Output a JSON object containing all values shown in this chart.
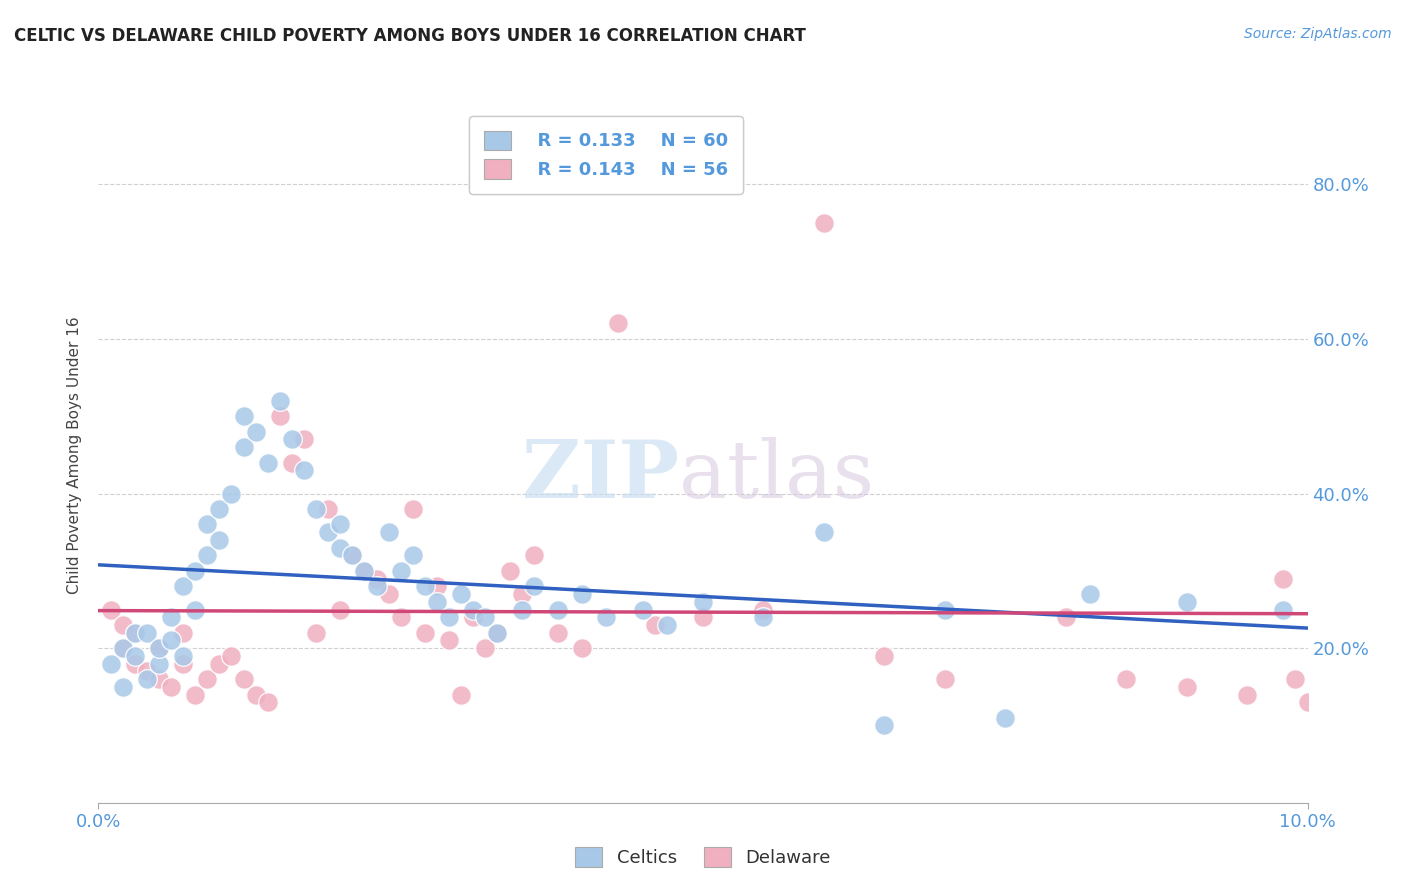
{
  "title": "CELTIC VS DELAWARE CHILD POVERTY AMONG BOYS UNDER 16 CORRELATION CHART",
  "source": "Source: ZipAtlas.com",
  "ylabel": "Child Poverty Among Boys Under 16",
  "xlim": [
    0.0,
    0.1
  ],
  "ylim": [
    0.0,
    0.9
  ],
  "yticks": [
    0.0,
    0.2,
    0.4,
    0.6,
    0.8
  ],
  "ytick_labels_right": [
    "",
    "20.0%",
    "40.0%",
    "60.0%",
    "80.0%"
  ],
  "celtics_color": "#a8c8e8",
  "delaware_color": "#f0b0c0",
  "celtics_line_color": "#3060c0",
  "delaware_line_color": "#d04878",
  "legend_R_celtics": "R = 0.133",
  "legend_N_celtics": "N = 60",
  "legend_R_delaware": "R = 0.143",
  "legend_N_delaware": "N = 56",
  "background_color": "#ffffff",
  "grid_color": "#d0d0d0",
  "watermark_zip": "ZIP",
  "watermark_atlas": "atlas",
  "celtics_x": [
    0.001,
    0.002,
    0.002,
    0.003,
    0.003,
    0.004,
    0.004,
    0.005,
    0.005,
    0.006,
    0.006,
    0.007,
    0.007,
    0.008,
    0.008,
    0.009,
    0.009,
    0.01,
    0.01,
    0.011,
    0.012,
    0.012,
    0.013,
    0.014,
    0.015,
    0.016,
    0.017,
    0.018,
    0.019,
    0.02,
    0.02,
    0.021,
    0.022,
    0.023,
    0.024,
    0.025,
    0.026,
    0.027,
    0.028,
    0.029,
    0.03,
    0.031,
    0.032,
    0.033,
    0.035,
    0.036,
    0.038,
    0.04,
    0.042,
    0.045,
    0.047,
    0.05,
    0.055,
    0.06,
    0.065,
    0.07,
    0.075,
    0.082,
    0.09,
    0.098
  ],
  "celtics_y": [
    0.18,
    0.15,
    0.2,
    0.22,
    0.19,
    0.16,
    0.22,
    0.18,
    0.2,
    0.21,
    0.24,
    0.19,
    0.28,
    0.25,
    0.3,
    0.32,
    0.36,
    0.34,
    0.38,
    0.4,
    0.46,
    0.5,
    0.48,
    0.44,
    0.52,
    0.47,
    0.43,
    0.38,
    0.35,
    0.33,
    0.36,
    0.32,
    0.3,
    0.28,
    0.35,
    0.3,
    0.32,
    0.28,
    0.26,
    0.24,
    0.27,
    0.25,
    0.24,
    0.22,
    0.25,
    0.28,
    0.25,
    0.27,
    0.24,
    0.25,
    0.23,
    0.26,
    0.24,
    0.35,
    0.1,
    0.25,
    0.11,
    0.27,
    0.26,
    0.25
  ],
  "delaware_x": [
    0.001,
    0.002,
    0.002,
    0.003,
    0.003,
    0.004,
    0.005,
    0.005,
    0.006,
    0.007,
    0.007,
    0.008,
    0.009,
    0.01,
    0.011,
    0.012,
    0.013,
    0.014,
    0.015,
    0.016,
    0.017,
    0.018,
    0.019,
    0.02,
    0.021,
    0.022,
    0.023,
    0.024,
    0.025,
    0.026,
    0.027,
    0.028,
    0.029,
    0.03,
    0.031,
    0.032,
    0.033,
    0.034,
    0.035,
    0.036,
    0.038,
    0.04,
    0.043,
    0.046,
    0.05,
    0.055,
    0.06,
    0.065,
    0.07,
    0.08,
    0.085,
    0.09,
    0.095,
    0.098,
    0.099,
    0.1
  ],
  "delaware_y": [
    0.25,
    0.23,
    0.2,
    0.18,
    0.22,
    0.17,
    0.16,
    0.2,
    0.15,
    0.18,
    0.22,
    0.14,
    0.16,
    0.18,
    0.19,
    0.16,
    0.14,
    0.13,
    0.5,
    0.44,
    0.47,
    0.22,
    0.38,
    0.25,
    0.32,
    0.3,
    0.29,
    0.27,
    0.24,
    0.38,
    0.22,
    0.28,
    0.21,
    0.14,
    0.24,
    0.2,
    0.22,
    0.3,
    0.27,
    0.32,
    0.22,
    0.2,
    0.62,
    0.23,
    0.24,
    0.25,
    0.75,
    0.19,
    0.16,
    0.24,
    0.16,
    0.15,
    0.14,
    0.29,
    0.16,
    0.13
  ]
}
